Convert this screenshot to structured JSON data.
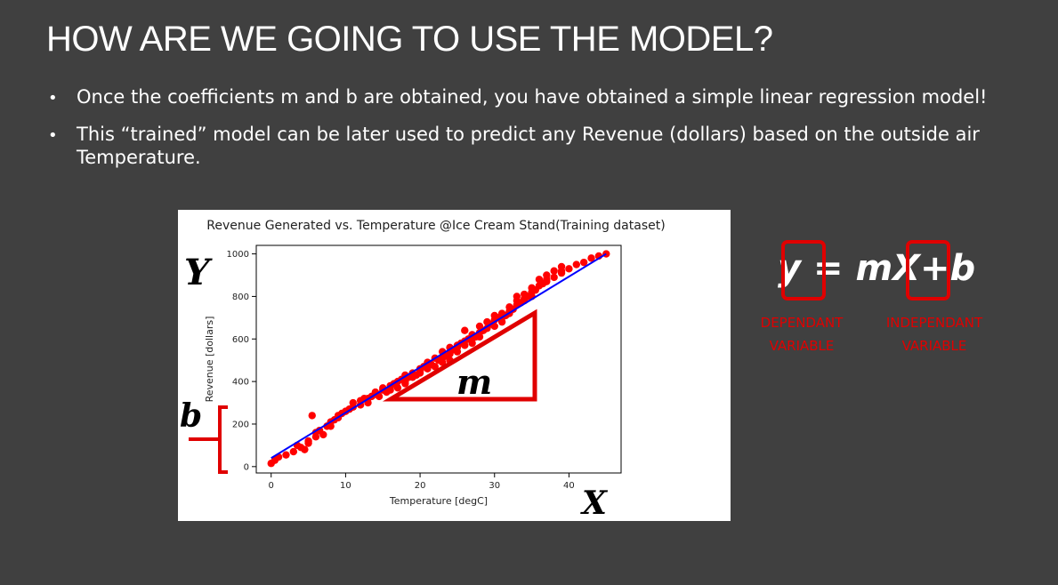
{
  "slide": {
    "title": "HOW ARE WE GOING TO USE THE MODEL?",
    "bullets": [
      {
        "marker": "•",
        "text": "Once the coefficients m and b are obtained, you have obtained a simple linear regression model!"
      },
      {
        "marker": "•",
        "text": "This “trained” model can be later used to predict any Revenue (dollars) based on the outside air Temperature."
      }
    ]
  },
  "annotations": {
    "y_letter": "Y",
    "x_letter": "X",
    "b_letter": "b",
    "m_letter": "m",
    "accent_color": "#e00000"
  },
  "equation": {
    "text": "y = mX+b",
    "dependant_label_line1": "DEPENDANT",
    "dependant_label_line2": "VARIABLE",
    "independant_label_line1": "INDEPENDANT",
    "independant_label_line2": "VARIABLE",
    "label_color": "#e00000"
  },
  "chart_data": {
    "type": "scatter",
    "title": "Revenue Generated vs. Temperature @Ice Cream Stand(Training dataset)",
    "xlabel": "Temperature [degC]",
    "ylabel": "Revenue [dollars]",
    "xlim": [
      -2,
      47
    ],
    "ylim": [
      -30,
      1040
    ],
    "xticks": [
      0,
      10,
      20,
      30,
      40
    ],
    "yticks": [
      0,
      200,
      400,
      600,
      800,
      1000
    ],
    "grid": false,
    "point_color": "#ff0000",
    "line_color": "#0000ff",
    "regression_line": {
      "x": [
        0,
        45
      ],
      "y": [
        40,
        1000
      ]
    },
    "points": [
      [
        0,
        15
      ],
      [
        0.5,
        30
      ],
      [
        1,
        45
      ],
      [
        2,
        55
      ],
      [
        3,
        70
      ],
      [
        4,
        90
      ],
      [
        5,
        120
      ],
      [
        5.5,
        240
      ],
      [
        6,
        160
      ],
      [
        6,
        140
      ],
      [
        7,
        150
      ],
      [
        7.5,
        190
      ],
      [
        8,
        210
      ],
      [
        8.5,
        220
      ],
      [
        9,
        240
      ],
      [
        9.5,
        250
      ],
      [
        10,
        260
      ],
      [
        10.5,
        270
      ],
      [
        11,
        280
      ],
      [
        11,
        300
      ],
      [
        12,
        290
      ],
      [
        12,
        310
      ],
      [
        12.5,
        320
      ],
      [
        13,
        300
      ],
      [
        13.5,
        330
      ],
      [
        14,
        340
      ],
      [
        14.5,
        330
      ],
      [
        15,
        360
      ],
      [
        15.5,
        350
      ],
      [
        16,
        360
      ],
      [
        16,
        380
      ],
      [
        16.5,
        390
      ],
      [
        17,
        370
      ],
      [
        17.5,
        410
      ],
      [
        18,
        400
      ],
      [
        18,
        430
      ],
      [
        18.5,
        420
      ],
      [
        19,
        440
      ],
      [
        19.5,
        430
      ],
      [
        20,
        460
      ],
      [
        20,
        440
      ],
      [
        20.5,
        470
      ],
      [
        21,
        460
      ],
      [
        21.5,
        480
      ],
      [
        22,
        470
      ],
      [
        22,
        510
      ],
      [
        22.5,
        500
      ],
      [
        23,
        510
      ],
      [
        23,
        540
      ],
      [
        23.5,
        520
      ],
      [
        24,
        530
      ],
      [
        24,
        560
      ],
      [
        24.5,
        550
      ],
      [
        25,
        570
      ],
      [
        25,
        540
      ],
      [
        25.5,
        580
      ],
      [
        26,
        570
      ],
      [
        26.5,
        600
      ],
      [
        26,
        640
      ],
      [
        27,
        580
      ],
      [
        27,
        620
      ],
      [
        27.5,
        610
      ],
      [
        28,
        630
      ],
      [
        28,
        660
      ],
      [
        28.5,
        640
      ],
      [
        29,
        650
      ],
      [
        29.5,
        670
      ],
      [
        30,
        660
      ],
      [
        30,
        690
      ],
      [
        30.5,
        700
      ],
      [
        31,
        680
      ],
      [
        31,
        720
      ],
      [
        31.5,
        710
      ],
      [
        32,
        720
      ],
      [
        32,
        750
      ],
      [
        32.5,
        740
      ],
      [
        33,
        760
      ],
      [
        33,
        800
      ],
      [
        33.5,
        770
      ],
      [
        34,
        780
      ],
      [
        34,
        810
      ],
      [
        34.5,
        800
      ],
      [
        35,
        820
      ],
      [
        35,
        840
      ],
      [
        35.5,
        830
      ],
      [
        36,
        850
      ],
      [
        36,
        880
      ],
      [
        36.5,
        860
      ],
      [
        37,
        870
      ],
      [
        37,
        900
      ],
      [
        38,
        890
      ],
      [
        38,
        920
      ],
      [
        39,
        910
      ],
      [
        39,
        940
      ],
      [
        40,
        930
      ],
      [
        41,
        950
      ],
      [
        42,
        960
      ],
      [
        43,
        980
      ],
      [
        44,
        990
      ],
      [
        45,
        1000
      ],
      [
        3.5,
        100
      ],
      [
        4.5,
        80
      ],
      [
        5,
        110
      ],
      [
        6.5,
        170
      ],
      [
        8,
        190
      ],
      [
        9,
        230
      ],
      [
        13,
        320
      ],
      [
        15,
        370
      ],
      [
        17,
        400
      ],
      [
        19,
        420
      ],
      [
        21,
        490
      ],
      [
        23,
        490
      ],
      [
        25,
        560
      ],
      [
        27,
        600
      ],
      [
        29,
        680
      ],
      [
        31,
        700
      ],
      [
        33,
        780
      ],
      [
        35,
        800
      ],
      [
        37,
        880
      ],
      [
        39,
        920
      ],
      [
        14,
        350
      ],
      [
        16,
        370
      ],
      [
        18,
        390
      ],
      [
        20,
        450
      ],
      [
        24,
        500
      ],
      [
        26,
        590
      ],
      [
        28,
        610
      ],
      [
        30,
        710
      ],
      [
        32,
        730
      ],
      [
        34,
        790
      ]
    ]
  }
}
